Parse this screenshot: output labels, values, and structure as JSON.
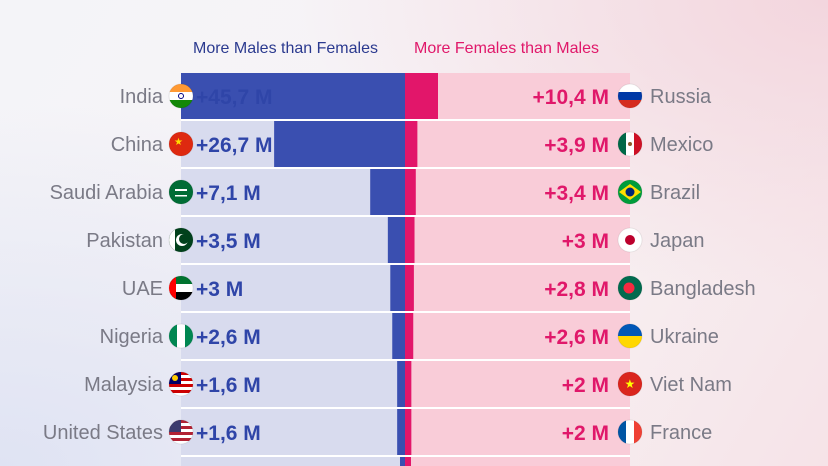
{
  "legend": {
    "males_label": "More Males than Females",
    "females_label": "More Females than Males"
  },
  "colors": {
    "males_bar": "#3a4fb0",
    "males_track": "#d8dbee",
    "females_bar": "#e2166a",
    "females_track": "#f9ccd8"
  },
  "chart_data": {
    "type": "bar",
    "unit": "M",
    "series": [
      {
        "name": "More Males than Females",
        "categories": [
          "India",
          "China",
          "Saudi Arabia",
          "Pakistan",
          "UAE",
          "Nigeria",
          "Malaysia",
          "United States"
        ],
        "labels": [
          "+45,7 M",
          "+26,7 M",
          "+7,1 M",
          "+3,5 M",
          "+3 M",
          "+2,6 M",
          "+1,6 M",
          "+1,6 M"
        ],
        "values": [
          45.7,
          26.7,
          7.1,
          3.5,
          3.0,
          2.6,
          1.6,
          1.6
        ],
        "flags": [
          "india-flag-icon",
          "china-flag-icon",
          "saudi-arabia-flag-icon",
          "pakistan-flag-icon",
          "uae-flag-icon",
          "nigeria-flag-icon",
          "malaysia-flag-icon",
          "united-states-flag-icon"
        ]
      },
      {
        "name": "More Females than Males",
        "categories": [
          "Russia",
          "Mexico",
          "Brazil",
          "Japan",
          "Bangladesh",
          "Ukraine",
          "Viet Nam",
          "France"
        ],
        "labels": [
          "+10,4 M",
          "+3,9 M",
          "+3,4 M",
          "+3 M",
          "+2,8 M",
          "+2,6 M",
          "+2 M",
          "+2 M"
        ],
        "values": [
          10.4,
          3.9,
          3.4,
          3.0,
          2.8,
          2.6,
          2.0,
          2.0
        ],
        "flags": [
          "russia-flag-icon",
          "mexico-flag-icon",
          "brazil-flag-icon",
          "japan-flag-icon",
          "bangladesh-flag-icon",
          "ukraine-flag-icon",
          "viet-nam-flag-icon",
          "france-flag-icon"
        ]
      }
    ]
  }
}
